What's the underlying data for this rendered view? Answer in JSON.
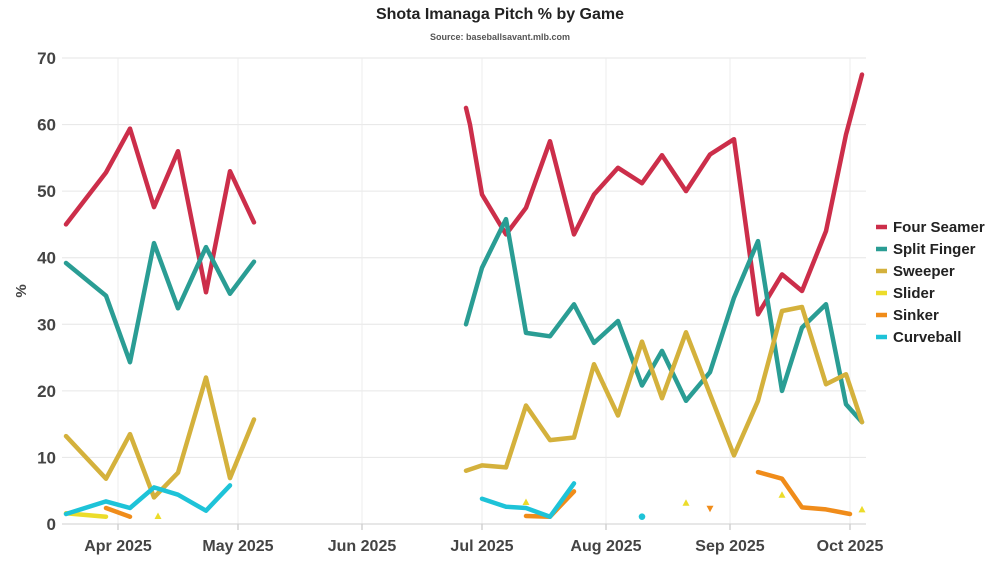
{
  "chart_data": {
    "type": "line",
    "title": "Shota Imanaga Pitch % by Game",
    "subtitle": "Source: baseballsavant.mlb.com",
    "xlabel": "",
    "ylabel": "%",
    "ylim": [
      0,
      70
    ],
    "yticks": [
      0,
      10,
      20,
      30,
      40,
      50,
      60,
      70
    ],
    "xlim": [
      "2025-03-18",
      "2025-10-05"
    ],
    "xticks": [
      {
        "date": "2025-04-01",
        "label": "Apr 2025"
      },
      {
        "date": "2025-05-01",
        "label": "May 2025"
      },
      {
        "date": "2025-06-01",
        "label": "Jun 2025"
      },
      {
        "date": "2025-07-01",
        "label": "Jul 2025"
      },
      {
        "date": "2025-08-01",
        "label": "Aug 2025"
      },
      {
        "date": "2025-09-01",
        "label": "Sep 2025"
      },
      {
        "date": "2025-10-01",
        "label": "Oct 2025"
      }
    ],
    "grid": true,
    "legend_position": "right",
    "series": [
      {
        "name": "Four Seamer",
        "color": "#cc2e4a",
        "points": [
          [
            "2025-03-19",
            45
          ],
          [
            "2025-03-29",
            52.8
          ],
          [
            "2025-04-04",
            59.4
          ],
          [
            "2025-04-10",
            47.6
          ],
          [
            "2025-04-16",
            56
          ],
          [
            "2025-04-23",
            34.8
          ],
          [
            "2025-04-29",
            53
          ],
          [
            "2025-05-05",
            45.3
          ],
          [
            "2025-06-27",
            62.5
          ],
          [
            "2025-06-28",
            60
          ],
          [
            "2025-07-01",
            49.5
          ],
          [
            "2025-07-07",
            43.5
          ],
          [
            "2025-07-12",
            47.5
          ],
          [
            "2025-07-18",
            57.5
          ],
          [
            "2025-07-24",
            43.5
          ],
          [
            "2025-07-29",
            49.5
          ],
          [
            "2025-08-04",
            53.5
          ],
          [
            "2025-08-10",
            51.2
          ],
          [
            "2025-08-15",
            55.4
          ],
          [
            "2025-08-21",
            50
          ],
          [
            "2025-08-27",
            55.5
          ],
          [
            "2025-09-02",
            57.8
          ],
          [
            "2025-09-08",
            31.5
          ],
          [
            "2025-09-14",
            37.5
          ],
          [
            "2025-09-19",
            35
          ],
          [
            "2025-09-25",
            44
          ],
          [
            "2025-09-30",
            58.5
          ],
          [
            "2025-10-04",
            67.5
          ]
        ]
      },
      {
        "name": "Split Finger",
        "color": "#2a9d94",
        "points": [
          [
            "2025-03-19",
            39.2
          ],
          [
            "2025-03-29",
            34.3
          ],
          [
            "2025-04-04",
            24.3
          ],
          [
            "2025-04-10",
            42.2
          ],
          [
            "2025-04-16",
            32.4
          ],
          [
            "2025-04-23",
            41.6
          ],
          [
            "2025-04-29",
            34.6
          ],
          [
            "2025-05-05",
            39.4
          ],
          [
            "2025-06-27",
            30
          ],
          [
            "2025-07-01",
            38.5
          ],
          [
            "2025-07-07",
            45.8
          ],
          [
            "2025-07-12",
            28.7
          ],
          [
            "2025-07-18",
            28.2
          ],
          [
            "2025-07-24",
            33
          ],
          [
            "2025-07-29",
            27.2
          ],
          [
            "2025-08-04",
            30.5
          ],
          [
            "2025-08-10",
            20.8
          ],
          [
            "2025-08-15",
            26
          ],
          [
            "2025-08-21",
            18.5
          ],
          [
            "2025-08-27",
            22.8
          ],
          [
            "2025-09-02",
            34
          ],
          [
            "2025-09-08",
            42.5
          ],
          [
            "2025-09-14",
            20
          ],
          [
            "2025-09-19",
            29.5
          ],
          [
            "2025-09-25",
            33
          ],
          [
            "2025-09-30",
            18
          ],
          [
            "2025-10-04",
            15.3
          ]
        ]
      },
      {
        "name": "Sweeper",
        "color": "#d4b13c",
        "points": [
          [
            "2025-03-19",
            13.2
          ],
          [
            "2025-03-29",
            6.8
          ],
          [
            "2025-04-04",
            13.5
          ],
          [
            "2025-04-10",
            4
          ],
          [
            "2025-04-16",
            7.7
          ],
          [
            "2025-04-23",
            22
          ],
          [
            "2025-04-29",
            6.9
          ],
          [
            "2025-05-05",
            15.7
          ],
          [
            "2025-06-27",
            8
          ],
          [
            "2025-07-01",
            8.8
          ],
          [
            "2025-07-07",
            8.5
          ],
          [
            "2025-07-12",
            17.8
          ],
          [
            "2025-07-18",
            12.6
          ],
          [
            "2025-07-24",
            13
          ],
          [
            "2025-07-29",
            24
          ],
          [
            "2025-08-04",
            16.3
          ],
          [
            "2025-08-10",
            27.4
          ],
          [
            "2025-08-15",
            18.9
          ],
          [
            "2025-08-21",
            28.8
          ],
          [
            "2025-08-27",
            19.5
          ],
          [
            "2025-09-02",
            10.3
          ],
          [
            "2025-09-08",
            18.5
          ],
          [
            "2025-09-14",
            32
          ],
          [
            "2025-09-19",
            32.6
          ],
          [
            "2025-09-25",
            21
          ],
          [
            "2025-09-30",
            22.5
          ],
          [
            "2025-10-04",
            15.3
          ]
        ]
      },
      {
        "name": "Slider",
        "color": "#ecdc2a",
        "points": [
          [
            "2025-03-19",
            1.6
          ],
          [
            "2025-03-29",
            1.1
          ]
        ],
        "markers": [
          [
            "2025-04-11",
            1.2
          ],
          [
            "2025-07-12",
            3.3
          ],
          [
            "2025-08-21",
            3.2
          ],
          [
            "2025-09-14",
            4.4
          ],
          [
            "2025-10-04",
            2.2
          ]
        ]
      },
      {
        "name": "Sinker",
        "color": "#f08c1a",
        "points": [
          [
            "2025-03-29",
            2.4
          ],
          [
            "2025-04-04",
            1.1
          ],
          [
            "2025-07-12",
            1.2
          ],
          [
            "2025-07-18",
            1.1
          ],
          [
            "2025-07-24",
            4.9
          ],
          [
            "2025-09-08",
            7.8
          ],
          [
            "2025-09-14",
            6.8
          ],
          [
            "2025-09-19",
            2.5
          ],
          [
            "2025-09-25",
            2.2
          ],
          [
            "2025-10-01",
            1.5
          ]
        ],
        "markers": [
          [
            "2025-08-27",
            2.3
          ]
        ]
      },
      {
        "name": "Curveball",
        "color": "#1ec3d8",
        "points": [
          [
            "2025-03-19",
            1.5
          ],
          [
            "2025-03-29",
            3.4
          ],
          [
            "2025-04-04",
            2.4
          ],
          [
            "2025-04-10",
            5.5
          ],
          [
            "2025-04-16",
            4.4
          ],
          [
            "2025-04-23",
            2
          ],
          [
            "2025-04-29",
            5.8
          ],
          [
            "2025-07-01",
            3.8
          ],
          [
            "2025-07-07",
            2.6
          ],
          [
            "2025-07-12",
            2.4
          ],
          [
            "2025-07-18",
            1.1
          ],
          [
            "2025-07-24",
            6.1
          ]
        ],
        "markers": [
          [
            "2025-08-10",
            1.1
          ]
        ]
      }
    ]
  }
}
